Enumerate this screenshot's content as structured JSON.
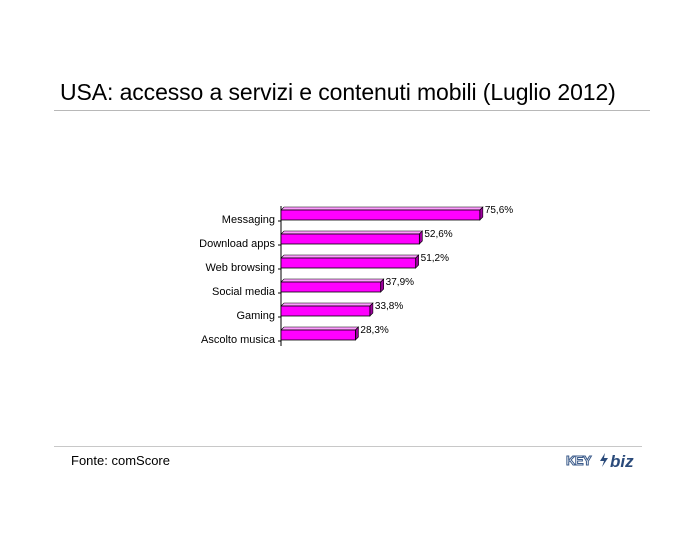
{
  "title": "USA: accesso a servizi e contenuti mobili (Luglio 2012)",
  "source": "Fonte: comScore",
  "logo": {
    "key_text": "KEY",
    "biz_text": "biz"
  },
  "colors": {
    "bar": "#ff00ff",
    "bar_side": "#a000a0",
    "bar_top": "#ff9cff",
    "axis": "#000000"
  },
  "chart_data": {
    "type": "bar",
    "orientation": "horizontal",
    "categories": [
      "Messaging",
      "Download apps",
      "Web browsing",
      "Social media",
      "Gaming",
      "Ascolto musica"
    ],
    "values": [
      75.6,
      52.6,
      51.2,
      37.9,
      33.8,
      28.3
    ],
    "value_labels": [
      "75,6%",
      "52,6%",
      "51,2%",
      "37,9%",
      "33,8%",
      "28,3%"
    ],
    "xlim": [
      0,
      100
    ],
    "grid": false,
    "legend": "none",
    "style": "3d"
  }
}
